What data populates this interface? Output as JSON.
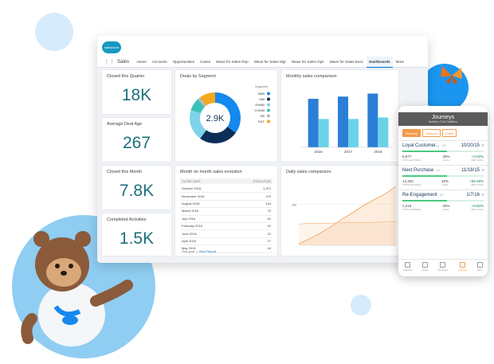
{
  "app": {
    "logo": "salesforce",
    "name": "Sales",
    "tabs": [
      "Home",
      "Accounts",
      "Opportunities",
      "Cases",
      "Wave for Sales Rep",
      "Wave for Sales Mgr",
      "Wave for Sales Ops",
      "Wave for Sales Exec",
      "Dashboards",
      "More"
    ],
    "active_tab": "Dashboards"
  },
  "metrics": [
    {
      "title": "Closed this Quarter",
      "value": "18K"
    },
    {
      "title": "Average Deal Age",
      "value": "267"
    },
    {
      "title": "Closed this Month",
      "value": "7.8K"
    },
    {
      "title": "Completed Activities",
      "value": "1.5K"
    }
  ],
  "deals_by_segment": {
    "type": "pie",
    "title": "Deals by Segment",
    "center_label": "2.9K",
    "legend_title": "Segment",
    "categories": [
      "SMB",
      "MM",
      "ENMB",
      "COMM",
      "DB",
      "ENT"
    ],
    "values": [
      35,
      25,
      20,
      8,
      2,
      10
    ],
    "colors": [
      "#1589ee",
      "#0b2e59",
      "#7ed3e8",
      "#3bc2b6",
      "#b0b9c2",
      "#f4a81d"
    ]
  },
  "monthly_sales": {
    "type": "bar",
    "title": "Monthly sales comparison",
    "categories": [
      "2016",
      "2017",
      "2018"
    ],
    "series": [
      {
        "color": "#2b7fd6",
        "values": [
          65,
          68,
          72
        ]
      },
      {
        "color": "#6ad3e8",
        "values": [
          38,
          38,
          40
        ]
      }
    ],
    "ylim": [
      0,
      80
    ]
  },
  "daily_sales": {
    "type": "line",
    "title": "Daily sales comparison",
    "series": [
      {
        "color": "#f29a4a",
        "values": [
          200000,
          800000,
          1500000,
          2300000,
          3200000,
          4000000,
          4900000,
          5600000,
          6300000,
          7200000
        ]
      },
      {
        "color": "#f6c38f",
        "values": [
          2600000,
          2700000,
          2700000,
          2700000,
          2800000,
          2800000,
          2800000,
          2800000,
          2900000,
          2900000
        ]
      }
    ],
    "ylim": [
      0,
      8000000
    ],
    "yticks": [
      {
        "value": 5000000,
        "label": "5M"
      }
    ]
  },
  "sales_evolution": {
    "title": "Month on month sales evolution",
    "columns": [
      "CLOSE DATE",
      "EVOLUTION"
    ],
    "rows": [
      [
        "October 2016",
        "1,372"
      ],
      [
        "November 2016",
        "179"
      ],
      [
        "August 2016",
        "144"
      ],
      [
        "March 2016",
        "75"
      ],
      [
        "July 2016",
        "42"
      ],
      [
        "February 2016",
        "42"
      ],
      [
        "June 2016",
        "22"
      ],
      [
        "April 2016",
        "27"
      ],
      [
        "May 2016",
        "18"
      ]
    ],
    "footer": [
      "This year",
      "View Report"
    ]
  },
  "journeys": {
    "title": "Journeys",
    "subtitle": "Northern Trail Outfitters",
    "tabs": [
      "Running",
      "Stopped",
      "Drafts"
    ],
    "active_tab": "Running",
    "items": [
      {
        "name": "Loyal Customer...",
        "version": "V2",
        "date": "10/20/15",
        "entries": "6,677",
        "entries_label": "TOTAL ENTRIES",
        "goal": "40%",
        "goal_label": "GOAL",
        "met": "+0.02%",
        "met_label": "MET GOAL"
      },
      {
        "name": "Next Purchase",
        "version": "V1",
        "date": "11/18/15",
        "entries": "12,453",
        "entries_label": "TOTAL ENTRIES",
        "goal": "40%",
        "goal_label": "GOAL",
        "met": "+59.48%",
        "met_label": "MET GOAL"
      },
      {
        "name": "Re-Engagement",
        "version": "V1",
        "date": "1/7/16",
        "entries": "1,219",
        "entries_label": "TOTAL ENTRIES",
        "goal": "40%",
        "goal_label": "GOAL",
        "met": "+0.82%",
        "met_label": "MET GOAL"
      }
    ],
    "nav": [
      "Calendar",
      "Email",
      "Messages",
      "Journeys",
      "More"
    ]
  }
}
